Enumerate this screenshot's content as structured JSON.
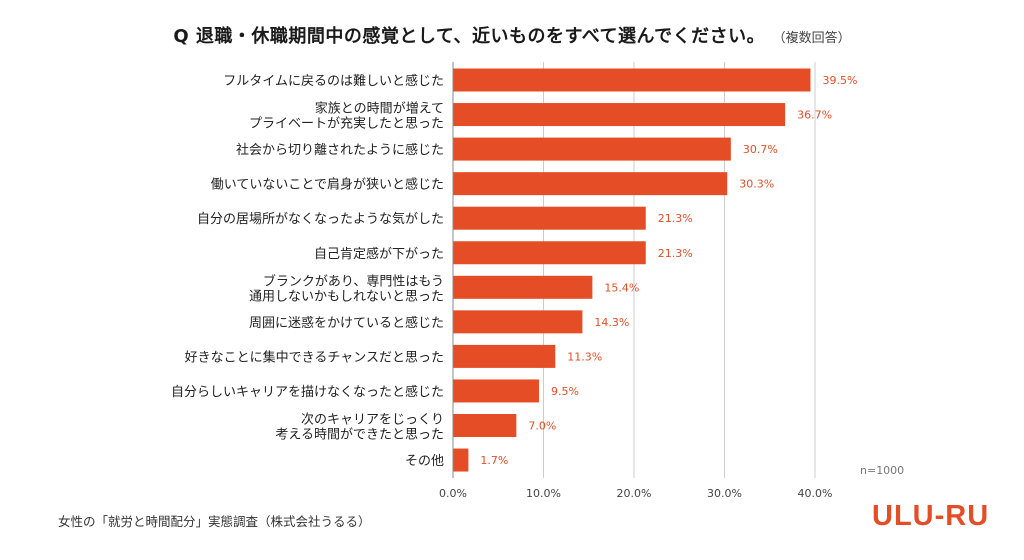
{
  "title": {
    "main": "Q 退職・休職期間中の感覚として、近いものをすべて選んでください。",
    "sub": "（複数回答）"
  },
  "note": "n=1000",
  "source": "女性の「就労と時間配分」実態調査（株式会社うるる）",
  "logo": "ULU-RU",
  "colors": {
    "bar": "#e54d26",
    "value_label": "#e54d26",
    "grid": "#cccccc"
  },
  "chart_data": {
    "type": "bar",
    "orientation": "horizontal",
    "categories": [
      [
        "フルタイムに戻るのは難しいと感じた"
      ],
      [
        "家族との時間が増えて",
        "プライベートが充実したと思った"
      ],
      [
        "社会から切り離されたように感じた"
      ],
      [
        "働いていないことで肩身が狭いと感じた"
      ],
      [
        "自分の居場所がなくなったような気がした"
      ],
      [
        "自己肯定感が下がった"
      ],
      [
        "ブランクがあり、専門性はもう",
        "通用しないかもしれないと思った"
      ],
      [
        "周囲に迷惑をかけていると感じた"
      ],
      [
        "好きなことに集中できるチャンスだと思った"
      ],
      [
        "自分らしいキャリアを描けなくなったと感じた"
      ],
      [
        "次のキャリアをじっくり",
        "考える時間ができたと思った"
      ],
      [
        "その他"
      ]
    ],
    "values": [
      39.5,
      36.7,
      30.7,
      30.3,
      21.3,
      21.3,
      15.4,
      14.3,
      11.3,
      9.5,
      7.0,
      1.7
    ],
    "value_labels": [
      "39.5%",
      "36.7%",
      "30.7%",
      "30.3%",
      "21.3%",
      "21.3%",
      "15.4%",
      "14.3%",
      "11.3%",
      "9.5%",
      "7.0%",
      "1.7%"
    ],
    "xlim": [
      0,
      40
    ],
    "xticks": [
      0,
      10,
      20,
      30,
      40
    ],
    "xtick_labels": [
      "0.0%",
      "10.0%",
      "20.0%",
      "30.0%",
      "40.0%"
    ],
    "grid": true,
    "legend": "none"
  }
}
